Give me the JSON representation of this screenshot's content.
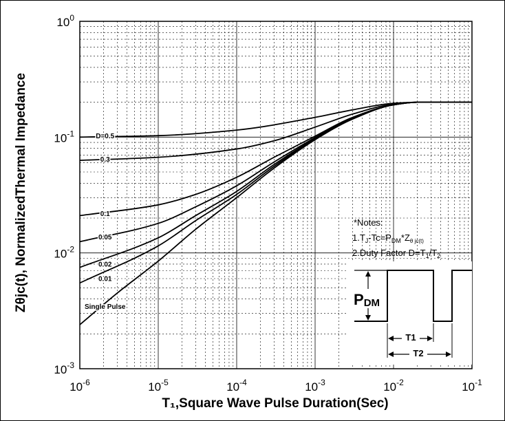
{
  "chart_data": {
    "type": "line",
    "x_scale": "log",
    "y_scale": "log",
    "xlim": [
      1e-06,
      0.1
    ],
    "ylim": [
      0.001,
      1
    ],
    "grid": true,
    "xlabel": "T₁,Square Wave Pulse Duration(Sec)",
    "ylabel": "Zθjc(t), NormalizedThermal Impedance",
    "x_ticks": [
      {
        "base": "10",
        "exp": "-6",
        "value": 1e-06
      },
      {
        "base": "10",
        "exp": "-5",
        "value": 1e-05
      },
      {
        "base": "10",
        "exp": "-4",
        "value": 0.0001
      },
      {
        "base": "10",
        "exp": "-3",
        "value": 0.001
      },
      {
        "base": "10",
        "exp": "-2",
        "value": 0.01
      },
      {
        "base": "10",
        "exp": "-1",
        "value": 0.1
      }
    ],
    "y_ticks": [
      {
        "base": "10",
        "exp": "0",
        "value": 1
      },
      {
        "base": "10",
        "exp": "-1",
        "value": 0.1
      },
      {
        "base": "10",
        "exp": "-2",
        "value": 0.01
      },
      {
        "base": "10",
        "exp": "-3",
        "value": 0.001
      }
    ],
    "series": [
      {
        "name": "D=0.5",
        "x": [
          1e-06,
          1e-05,
          0.0001,
          0.001,
          0.003,
          0.01,
          0.02,
          0.1
        ],
        "y": [
          0.1,
          0.103,
          0.115,
          0.148,
          0.172,
          0.196,
          0.2,
          0.2
        ]
      },
      {
        "name": "0.3",
        "x": [
          1e-06,
          1e-05,
          0.0001,
          0.0003,
          0.001,
          0.003,
          0.01,
          0.02,
          0.1
        ],
        "y": [
          0.063,
          0.067,
          0.079,
          0.093,
          0.122,
          0.158,
          0.193,
          0.2,
          0.2
        ]
      },
      {
        "name": "0.1",
        "x": [
          1e-06,
          1e-05,
          3e-05,
          0.0001,
          0.0003,
          0.001,
          0.003,
          0.01,
          0.02,
          0.1
        ],
        "y": [
          0.021,
          0.026,
          0.032,
          0.045,
          0.067,
          0.102,
          0.148,
          0.19,
          0.2,
          0.2
        ]
      },
      {
        "name": "0.05",
        "x": [
          1e-06,
          1e-05,
          3e-05,
          0.0001,
          0.0003,
          0.001,
          0.003,
          0.01,
          0.02,
          0.1
        ],
        "y": [
          0.0125,
          0.018,
          0.025,
          0.038,
          0.061,
          0.099,
          0.146,
          0.19,
          0.2,
          0.2
        ]
      },
      {
        "name": "0.02",
        "x": [
          1e-06,
          1e-05,
          3e-05,
          0.0001,
          0.0003,
          0.001,
          0.003,
          0.01,
          0.02,
          0.1
        ],
        "y": [
          0.0075,
          0.0135,
          0.021,
          0.034,
          0.058,
          0.097,
          0.145,
          0.19,
          0.2,
          0.2
        ]
      },
      {
        "name": "0.01",
        "x": [
          1e-06,
          1e-05,
          3e-05,
          0.0001,
          0.0003,
          0.001,
          0.003,
          0.01,
          0.02,
          0.1
        ],
        "y": [
          0.0055,
          0.0115,
          0.019,
          0.032,
          0.056,
          0.096,
          0.144,
          0.19,
          0.2,
          0.2
        ]
      },
      {
        "name": "Single Pulse",
        "x": [
          1e-06,
          3e-06,
          1e-05,
          3e-05,
          0.0001,
          0.0003,
          0.001,
          0.003,
          0.01,
          0.02,
          0.1
        ],
        "y": [
          0.0024,
          0.0045,
          0.0085,
          0.016,
          0.03,
          0.054,
          0.095,
          0.143,
          0.19,
          0.2,
          0.2
        ]
      }
    ],
    "curve_labels": [
      {
        "text": "D=0.5",
        "x": 2.1e-06,
        "y": 0.101
      },
      {
        "text": "0.3",
        "x": 2.1e-06,
        "y": 0.0635
      },
      {
        "text": "0.1",
        "x": 2.1e-06,
        "y": 0.0215
      },
      {
        "text": "0.05",
        "x": 2.1e-06,
        "y": 0.0135
      },
      {
        "text": "0.02",
        "x": 2.1e-06,
        "y": 0.0079
      },
      {
        "text": "0.01",
        "x": 2.1e-06,
        "y": 0.0059
      },
      {
        "text": "Single Pulse",
        "x": 2.1e-06,
        "y": 0.0034
      }
    ],
    "notes": {
      "title": "*Notes:",
      "line1": {
        "a": "1.T",
        "a_sub": "J",
        "b": "-Tc=P",
        "b_sub": "DM",
        "c": "*Z",
        "c_sub": "θ jc(t)"
      },
      "line2": {
        "a": "2.Duty Factor D=T",
        "a_sub": "1",
        "b": "/T",
        "b_sub": "2"
      }
    },
    "inset": {
      "pdm_main": "P",
      "pdm_sub": "DM",
      "t1": "T1",
      "t2": "T2"
    }
  },
  "colors": {
    "line": "#000000",
    "grid": "#000000",
    "background": "#ffffff"
  }
}
